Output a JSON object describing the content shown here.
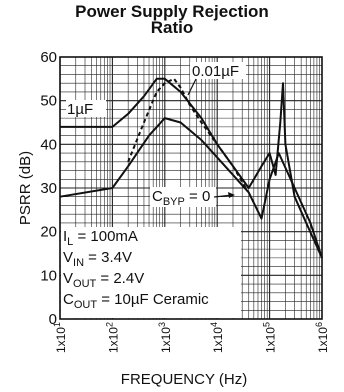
{
  "chart_data": {
    "type": "line",
    "title_line1": "Power Supply Rejection",
    "title_line2": "Ratio",
    "xlabel": "FREQUENCY (Hz)",
    "ylabel": "PSRR (dB)",
    "xscale": "log",
    "xlim": [
      10,
      1000000
    ],
    "ylim": [
      0,
      60
    ],
    "grid": true,
    "y_ticks": [
      {
        "value": 0,
        "label": "0"
      },
      {
        "value": 10,
        "label": "10"
      },
      {
        "value": 20,
        "label": "20"
      },
      {
        "value": 30,
        "label": "30"
      },
      {
        "value": 40,
        "label": "40"
      },
      {
        "value": 50,
        "label": "50"
      },
      {
        "value": 60,
        "label": "60"
      }
    ],
    "x_ticks": [
      {
        "value": 10,
        "base": "1x10",
        "exp": "1"
      },
      {
        "value": 100,
        "base": "1x10",
        "exp": "2"
      },
      {
        "value": 1000,
        "base": "1x10",
        "exp": "3"
      },
      {
        "value": 10000,
        "base": "1x10",
        "exp": "4"
      },
      {
        "value": 100000,
        "base": "1x10",
        "exp": "5"
      },
      {
        "value": 1000000,
        "base": "1x10",
        "exp": "6"
      }
    ],
    "series": [
      {
        "name": "1µF",
        "style": "solid",
        "x": [
          10,
          100,
          200,
          400,
          700,
          1000,
          2000,
          5000,
          10000,
          20000,
          40000,
          70000,
          100000,
          130000,
          160000,
          180000,
          200000,
          300000,
          500000,
          1000000
        ],
        "y": [
          44,
          44,
          47,
          51,
          55,
          55,
          52,
          46,
          40,
          35,
          30,
          35,
          38,
          33,
          45,
          54,
          40,
          28,
          22,
          14
        ]
      },
      {
        "name": "0.01µF",
        "style": "dashed",
        "x": [
          200,
          400,
          700,
          1000,
          1500,
          2000,
          3000,
          5000,
          10000,
          20000,
          35000
        ],
        "y": [
          36,
          45,
          52,
          54,
          55,
          53,
          49,
          45,
          40,
          35,
          30
        ]
      },
      {
        "name": "C_BYP = 0",
        "style": "solid",
        "x": [
          10,
          100,
          200,
          500,
          1000,
          2000,
          5000,
          10000,
          20000,
          40000,
          70000,
          100000,
          150000,
          300000,
          600000,
          1000000
        ],
        "y": [
          28,
          30,
          35,
          42,
          46,
          45,
          41,
          37,
          33,
          29,
          23,
          32,
          38,
          30,
          22,
          14
        ]
      }
    ],
    "annotations": {
      "one_uf": "1µF",
      "point01_uf": "0.01µF",
      "cbyp_c": "C",
      "cbyp_sub": "BYP",
      "cbyp_rest": " = 0",
      "cond_il_main": "I",
      "cond_il_sub": "L",
      "cond_il_rest": " = 100mA",
      "cond_vin_main": "V",
      "cond_vin_sub": "IN",
      "cond_vin_rest": " = 3.4V",
      "cond_vout_main": "V",
      "cond_vout_sub": "OUT",
      "cond_vout_rest": " = 2.4V",
      "cond_cout_main": "C",
      "cond_cout_sub": "OUT",
      "cond_cout_rest": " = 10µF Ceramic"
    }
  }
}
